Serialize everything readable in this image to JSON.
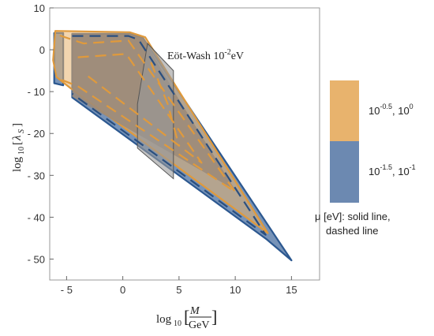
{
  "chart_data": {
    "type": "area",
    "xlabel": "log10[M/GeV]",
    "ylabel": "log10[λS]",
    "xlim": [
      -6.5,
      17.5
    ],
    "ylim": [
      -55,
      10
    ],
    "x_ticks": [
      -5,
      0,
      5,
      10,
      15
    ],
    "y_ticks": [
      10,
      0,
      -10,
      -20,
      -30,
      -40,
      -50
    ],
    "grid": false,
    "annotation": {
      "text": "Eöt-Wash 10",
      "exponent": "-2",
      "unit": "eV"
    },
    "colors": {
      "orange": "#e8b36d",
      "blue": "#5f80ab",
      "blue_edge": "#2c5890",
      "orange_edge": "#e09a3c",
      "eot_wash": "#9a9a9a"
    },
    "series": [
      {
        "kind": "blue",
        "style": "solid",
        "polygon": [
          [
            -4.5,
            3.8
          ],
          [
            0.7,
            3.8
          ],
          [
            1.8,
            2.8
          ],
          [
            15.0,
            -50.3
          ],
          [
            12.8,
            -45.3
          ],
          [
            -4.5,
            -11.4
          ]
        ]
      },
      {
        "kind": "blue",
        "style": "solid",
        "polygon": [
          [
            -6.1,
            4.0
          ],
          [
            -5.3,
            4.0
          ],
          [
            -5.3,
            -8.5
          ],
          [
            -6.1,
            -8.0
          ]
        ]
      },
      {
        "kind": "blue",
        "style": "dashed",
        "polyline": [
          [
            -4.5,
            3.3
          ],
          [
            0.5,
            3.3
          ],
          [
            1.4,
            2.4
          ],
          [
            12.7,
            -44.2
          ],
          [
            -4.5,
            -10.5
          ]
        ]
      },
      {
        "kind": "orange",
        "style": "solid",
        "polygon": [
          [
            -6.0,
            4.5
          ],
          [
            0.6,
            4.2
          ],
          [
            2.0,
            3.0
          ],
          [
            12.9,
            -43.8
          ],
          [
            -4.6,
            -9.3
          ],
          [
            -5.9,
            -6.5
          ],
          [
            -6.2,
            -2.5
          ]
        ]
      },
      {
        "kind": "orange",
        "style": "dashed",
        "polyline": [
          [
            -5.6,
            3.4
          ],
          [
            -3.5,
            1.5
          ],
          [
            0.5,
            2.2
          ],
          [
            10.0,
            -34.0
          ],
          [
            -4.0,
            -8.7
          ],
          [
            -5.8,
            -6.8
          ]
        ]
      },
      {
        "kind": "orange",
        "style": "dashed",
        "polyline": [
          [
            -4.0,
            -1.8
          ],
          [
            0.3,
            -1.0
          ],
          [
            7.0,
            -27.0
          ],
          [
            -3.5,
            -5.5
          ]
        ]
      },
      {
        "kind": "orange",
        "style": "dashed",
        "polyline": [
          [
            2.5,
            -3.0
          ],
          [
            4.0,
            -13.0
          ],
          [
            5.0,
            -23.0
          ]
        ]
      }
    ],
    "eot_wash": {
      "polygon": [
        [
          2.2,
          1.5
        ],
        [
          4.5,
          -5.0
        ],
        [
          4.5,
          -30.8
        ],
        [
          1.3,
          -23.5
        ],
        [
          1.3,
          -13.0
        ]
      ]
    },
    "overlap_region": {
      "polygon": [
        [
          -4.5,
          3.8
        ],
        [
          0.7,
          3.8
        ],
        [
          1.8,
          2.8
        ],
        [
          4.8,
          -11.0
        ],
        [
          10.0,
          -33.5
        ],
        [
          -4.5,
          -11.2
        ]
      ]
    }
  },
  "legend": {
    "orange_range": "10^-0.5, 10^0",
    "orange_base1": "10",
    "orange_exp1": "-0.5",
    "orange_sep": ", 10",
    "orange_exp2": "0",
    "blue_range": "10^-1.5, 10^-1",
    "blue_base1": "10",
    "blue_exp1": "-1.5",
    "blue_sep": ", 10",
    "blue_exp2": "-1",
    "caption_line1": "μ [eV]: solid line,",
    "caption_line2": "dashed line"
  }
}
